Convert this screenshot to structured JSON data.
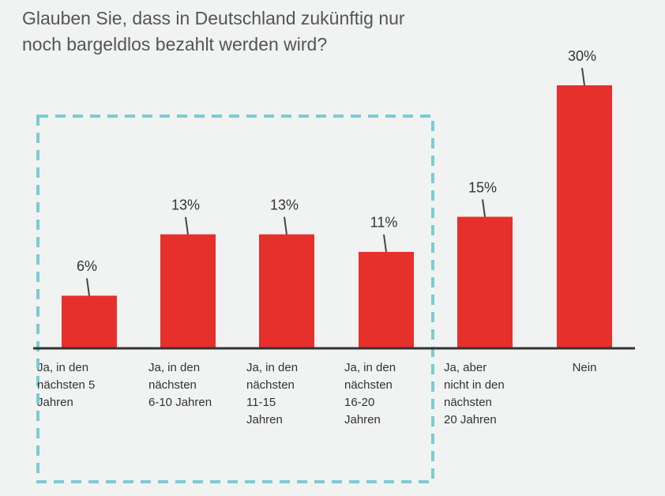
{
  "chart_data": {
    "type": "bar",
    "title": [
      "Glauben Sie, dass in Deutschland zukünftig nur",
      "noch bargeldlos bezahlt werden wird?"
    ],
    "categories": [
      [
        "Ja, in den",
        "nächsten 5",
        "Jahren"
      ],
      [
        "Ja, in den",
        "nächsten",
        "6-10 Jahren"
      ],
      [
        "Ja, in den",
        "nächsten",
        "11-15",
        "Jahren"
      ],
      [
        "Ja, in den",
        "nächsten",
        "16-20",
        "Jahren"
      ],
      [
        "Ja, aber",
        "nicht in den",
        "nächsten",
        "20 Jahren"
      ],
      [
        "Nein"
      ]
    ],
    "values": [
      6,
      13,
      13,
      11,
      15,
      30
    ],
    "value_labels": [
      "6%",
      "13%",
      "13%",
      "11%",
      "15%",
      "30%"
    ],
    "color": "#e5302c"
  }
}
